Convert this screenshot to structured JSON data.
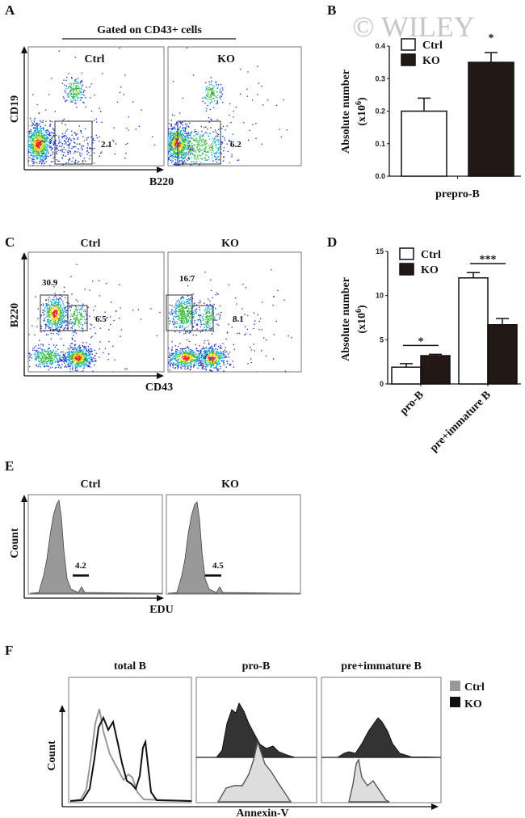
{
  "watermark": "© WILEY",
  "panel_a": {
    "letter": "A",
    "title": "Gated on CD43+ cells",
    "plots": [
      {
        "label": "Ctrl",
        "gate_value": "2.1"
      },
      {
        "label": "KO",
        "gate_value": "6.2"
      }
    ],
    "ylabel": "CD19",
    "xlabel": "B220"
  },
  "panel_c": {
    "letter": "C",
    "plots": [
      {
        "label": "Ctrl",
        "gate1": "30.9",
        "gate2": "6.5"
      },
      {
        "label": "KO",
        "gate1": "16.7",
        "gate2": "8.1"
      }
    ],
    "ylabel": "B220",
    "xlabel": "CD43"
  },
  "panel_e": {
    "letter": "E",
    "plots": [
      {
        "label": "Ctrl",
        "value": "4.2"
      },
      {
        "label": "KO",
        "value": "4.5"
      }
    ],
    "ylabel": "Count",
    "xlabel": "EDU"
  },
  "panel_f": {
    "letter": "F",
    "plots": [
      {
        "label": "total B"
      },
      {
        "label": "pro-B"
      },
      {
        "label": "pre+immature B"
      }
    ],
    "ylabel": "Count",
    "xlabel": "Annexin-V",
    "legend": [
      {
        "name": "Ctrl",
        "color": "#999999"
      },
      {
        "name": "KO",
        "color": "#111111"
      }
    ]
  },
  "chart_data": [
    {
      "panel": "B",
      "type": "bar",
      "categories": [
        "prepro-B"
      ],
      "series": [
        {
          "name": "Ctrl",
          "values": [
            0.2
          ],
          "errors": [
            0.04
          ],
          "color": "#ffffff"
        },
        {
          "name": "KO",
          "values": [
            0.35
          ],
          "errors": [
            0.03
          ],
          "color": "#231815"
        }
      ],
      "ylabel_line1": "Absolute number",
      "ylabel_line2_pre": "(x10",
      "ylabel_line2_sup": "6",
      "ylabel_line2_post": ")",
      "ylim": [
        0,
        0.4
      ],
      "yticks": [
        "0.0",
        "0.1",
        "0.2",
        "0.3",
        "0.4"
      ],
      "significance": [
        {
          "category": "prepro-B",
          "label": "*"
        }
      ],
      "legend": "top-left"
    },
    {
      "panel": "D",
      "type": "bar",
      "categories": [
        "pro-B",
        "pre+immature B"
      ],
      "series": [
        {
          "name": "Ctrl",
          "values": [
            1.9,
            12.0
          ],
          "errors": [
            0.4,
            0.6
          ],
          "color": "#ffffff"
        },
        {
          "name": "KO",
          "values": [
            3.2,
            6.7
          ],
          "errors": [
            0.15,
            0.7
          ],
          "color": "#231815"
        }
      ],
      "ylabel_line1": "Absolute number",
      "ylabel_line2_pre": "(x10",
      "ylabel_line2_sup": "6",
      "ylabel_line2_post": ")",
      "ylim": [
        0,
        15
      ],
      "yticks": [
        "0",
        "5",
        "10",
        "15"
      ],
      "significance": [
        {
          "category": "pro-B",
          "label": "*"
        },
        {
          "category": "pre+immature B",
          "label": "***"
        }
      ],
      "legend": "top-left"
    }
  ]
}
